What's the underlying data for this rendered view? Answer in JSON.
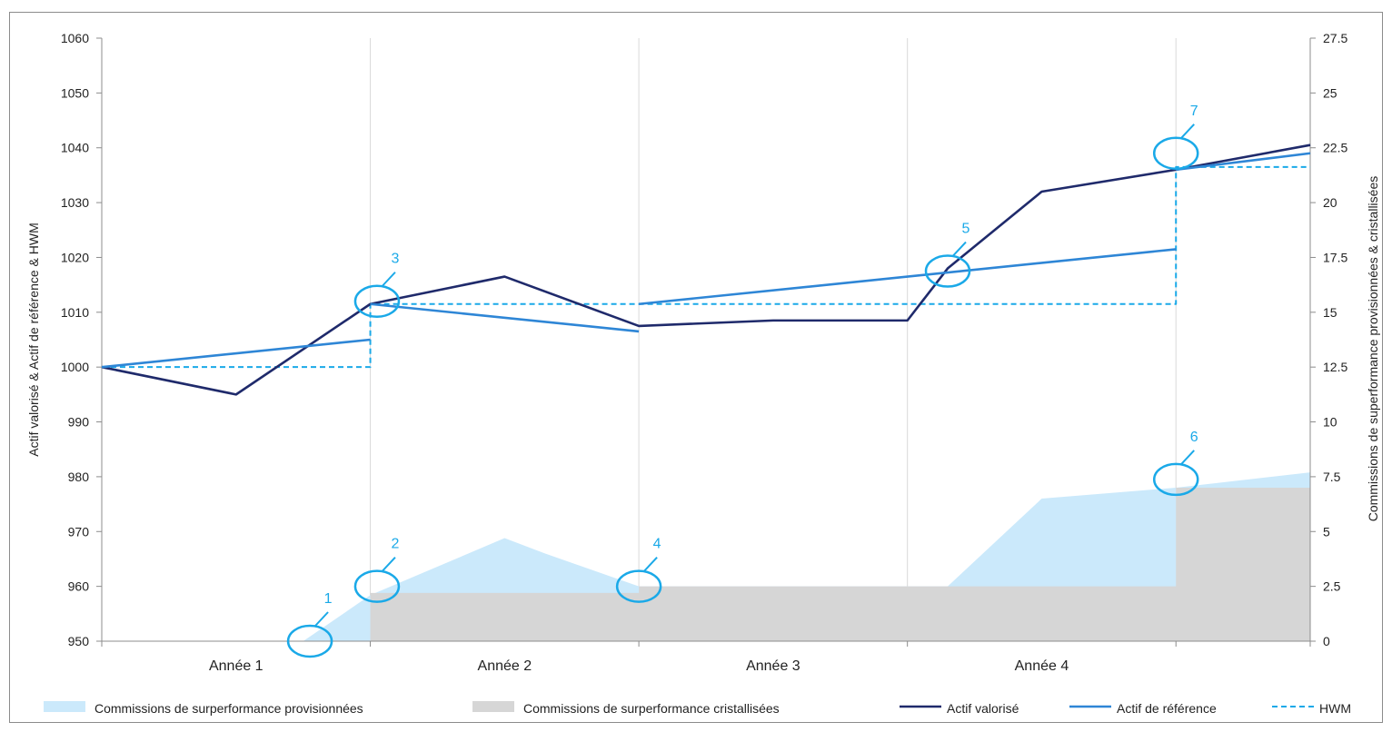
{
  "chart_data": {
    "type": "line",
    "categories": [
      "Année 1",
      "Année 2",
      "Année 3",
      "Année 4"
    ],
    "ylabel_left": "Actif valorisé & Actif de référence & HWM",
    "ylabel_right": "Commissions de superformance provisionnées & cristallisées",
    "ylim_left": [
      950,
      1060
    ],
    "ylim_right": [
      0,
      27.5
    ],
    "yticks_left": [
      950,
      960,
      970,
      980,
      990,
      1000,
      1010,
      1020,
      1030,
      1040,
      1050,
      1060
    ],
    "yticks_right": [
      0,
      2.5,
      5,
      7.5,
      10,
      12.5,
      15,
      17.5,
      20,
      22.5,
      25,
      27.5
    ],
    "ytick_labels_left": [
      "950",
      "960",
      "970",
      "980",
      "990",
      "1000",
      "1010",
      "1020",
      "1030",
      "1040",
      "1050",
      "1060"
    ],
    "ytick_labels_right": [
      "0",
      "2.5",
      "5",
      "7.5",
      "10",
      "12.5",
      "15",
      "17.5",
      "20",
      "22.5",
      "25",
      "27.5"
    ],
    "x_range": [
      0,
      9
    ],
    "grid": "vertical",
    "legend_position": "bottom",
    "series": [
      {
        "name": "Actif valorisé",
        "kind": "line",
        "axis": "left",
        "color": "#1f2a6b",
        "points": [
          [
            0,
            1000
          ],
          [
            1,
            995
          ],
          [
            2,
            1011.5
          ],
          [
            3,
            1016.5
          ],
          [
            4,
            1007.5
          ],
          [
            5,
            1008.5
          ],
          [
            6,
            1008.5
          ],
          [
            6.3,
            1018
          ],
          [
            7,
            1032
          ],
          [
            8,
            1036
          ],
          [
            9,
            1040.5
          ]
        ]
      },
      {
        "name": "Actif de référence",
        "kind": "line",
        "axis": "left",
        "color": "#2e86d6",
        "segments": [
          [
            [
              0,
              1000
            ],
            [
              2,
              1005
            ]
          ],
          [
            [
              2,
              1011.5
            ],
            [
              4,
              1006.5
            ]
          ],
          [
            [
              4,
              1011.5
            ],
            [
              8,
              1021.5
            ]
          ],
          [
            [
              8,
              1036
            ],
            [
              9,
              1039
            ]
          ]
        ]
      },
      {
        "name": "HWM",
        "kind": "dashed",
        "axis": "left",
        "color": "#1aa9e8",
        "points": [
          [
            0,
            1000
          ],
          [
            2,
            1000
          ],
          [
            2,
            1011.5
          ],
          [
            8,
            1011.5
          ],
          [
            8,
            1036.5
          ],
          [
            9,
            1036.5
          ]
        ]
      },
      {
        "name": "Commissions de surperformance provisionnées",
        "kind": "area",
        "axis": "right",
        "color": "#cbe9fb",
        "points": [
          [
            1.5,
            0
          ],
          [
            2,
            2.1
          ],
          [
            3,
            4.7
          ],
          [
            3.3,
            4.0
          ],
          [
            4,
            2.5
          ],
          [
            4.5,
            2.5
          ],
          [
            6,
            2.5
          ],
          [
            6.3,
            2.5
          ],
          [
            7,
            6.5
          ],
          [
            8,
            7.0
          ],
          [
            9,
            7.7
          ]
        ]
      },
      {
        "name": "Commissions de surperformance cristallisées",
        "kind": "area",
        "axis": "right",
        "color": "#d6d6d6",
        "points": [
          [
            2,
            0
          ],
          [
            2,
            2.2
          ],
          [
            4,
            2.2
          ],
          [
            4,
            2.5
          ],
          [
            8,
            2.5
          ],
          [
            8,
            7.0
          ],
          [
            9,
            7.0
          ],
          [
            9,
            0
          ]
        ]
      }
    ],
    "annotations": [
      {
        "label": "1",
        "x": 1.55,
        "y_left": 950
      },
      {
        "label": "2",
        "x": 2.05,
        "y_left": 960
      },
      {
        "label": "3",
        "x": 2.05,
        "y_left": 1012
      },
      {
        "label": "4",
        "x": 4.0,
        "y_left": 960
      },
      {
        "label": "5",
        "x": 6.3,
        "y_left": 1017.5
      },
      {
        "label": "6",
        "x": 8.0,
        "y_left": 979.5
      },
      {
        "label": "7",
        "x": 8.0,
        "y_left": 1039
      }
    ],
    "legend": [
      {
        "label": "Commissions de surperformance provisionnées",
        "kind": "swatch",
        "color": "#cbe9fb"
      },
      {
        "label": "Commissions de surperformance cristallisées",
        "kind": "swatch",
        "color": "#d6d6d6"
      },
      {
        "label": "Actif valorisé",
        "kind": "line",
        "color": "#1f2a6b"
      },
      {
        "label": "Actif de référence",
        "kind": "line",
        "color": "#2e86d6"
      },
      {
        "label": "HWM",
        "kind": "dashed",
        "color": "#1aa9e8"
      }
    ]
  }
}
